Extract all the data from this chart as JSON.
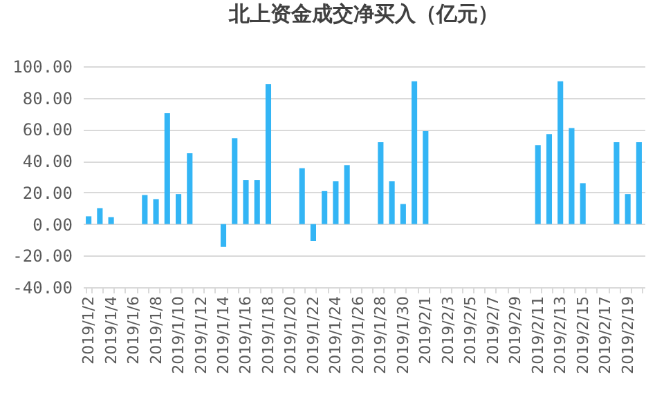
{
  "chart_data": {
    "type": "bar",
    "title": "北上资金成交净买入（亿元）",
    "categories": [
      "2019/1/2",
      null,
      "2019/1/4",
      null,
      "2019/1/6",
      null,
      "2019/1/8",
      null,
      "2019/1/10",
      null,
      "2019/1/12",
      null,
      "2019/1/14",
      null,
      "2019/1/16",
      null,
      "2019/1/18",
      null,
      "2019/1/20",
      null,
      "2019/1/22",
      null,
      "2019/1/24",
      null,
      "2019/1/26",
      null,
      "2019/1/28",
      null,
      "2019/1/30",
      null,
      "2019/2/1",
      null,
      "2019/2/3",
      null,
      "2019/2/5",
      null,
      "2019/2/7",
      null,
      "2019/2/9",
      null,
      "2019/2/11",
      null,
      "2019/2/13",
      null,
      "2019/2/15",
      null,
      "2019/2/17",
      null,
      "2019/2/19",
      null
    ],
    "values": [
      4.9,
      10.1,
      4.4,
      null,
      null,
      18.4,
      15.8,
      70.3,
      19.0,
      44.9,
      null,
      null,
      -14.5,
      54.4,
      27.8,
      27.8,
      88.6,
      null,
      null,
      35.4,
      -10.7,
      20.9,
      27.2,
      37.3,
      null,
      null,
      51.9,
      27.2,
      12.7,
      90.5,
      58.9,
      null,
      null,
      null,
      null,
      null,
      null,
      null,
      null,
      null,
      50.0,
      57.0,
      90.5,
      60.8,
      25.9,
      null,
      null,
      51.9,
      19.0,
      51.9
    ],
    "color": "#33b5f5",
    "ylim": [
      -40,
      100
    ],
    "yticks": [
      {
        "value": -40,
        "label": "-40.00"
      },
      {
        "value": -20,
        "label": "-20.00"
      },
      {
        "value": 0,
        "label": "0.00"
      },
      {
        "value": 20,
        "label": "20.00"
      },
      {
        "value": 40,
        "label": "40.00"
      },
      {
        "value": 60,
        "label": "60.00"
      },
      {
        "value": 80,
        "label": "80.00"
      },
      {
        "value": 100,
        "label": "100.00"
      }
    ],
    "grid": "y"
  }
}
